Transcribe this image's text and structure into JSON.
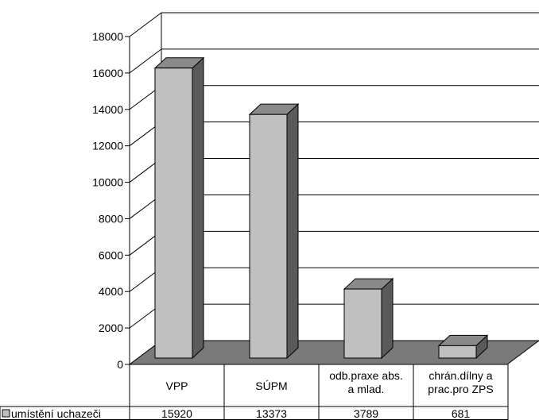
{
  "chart_data": {
    "type": "bar",
    "title": "",
    "categories": [
      "VPP",
      "SÚPM",
      "odb.praxe abs. a mlad.",
      "chrán.dílny a prac.pro ZPS"
    ],
    "category_lines": [
      [
        "VPP"
      ],
      [
        "SÚPM"
      ],
      [
        "odb.praxe abs.",
        "a mlad."
      ],
      [
        "chrán.dílny a",
        "prac.pro ZPS"
      ]
    ],
    "series": [
      {
        "name": "umístění uchazeči",
        "values": [
          15920,
          13373,
          3789,
          681
        ]
      }
    ],
    "value_labels": [
      "15920",
      "13373",
      "3789",
      "681"
    ],
    "ylim": [
      0,
      18000
    ],
    "yticks": [
      0,
      2000,
      4000,
      6000,
      8000,
      10000,
      12000,
      14000,
      16000,
      18000
    ],
    "grid": true,
    "legend": "data-table-left",
    "style": "3d-column-with-data-table"
  },
  "colors": {
    "bar_front": "#c0c0c0",
    "bar_top": "#8a8a8a",
    "bar_side": "#5a5a5a",
    "floor": "#7a7a7a",
    "grid": "#000000",
    "background": "#ffffff"
  }
}
